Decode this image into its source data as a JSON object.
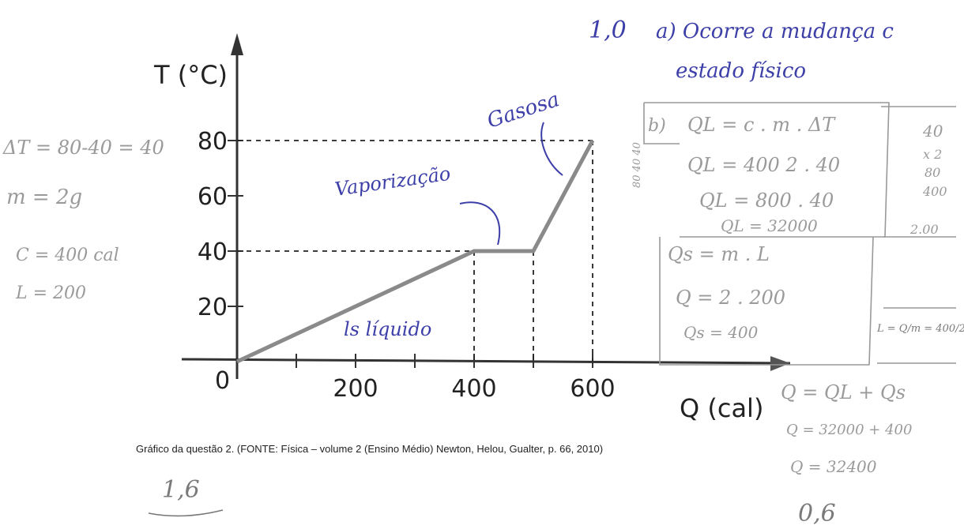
{
  "chart_data": {
    "type": "line",
    "xlabel": "Q (cal)",
    "ylabel": "T (°C)",
    "xlim": [
      0,
      600
    ],
    "ylim": [
      0,
      80
    ],
    "x_ticks": [
      "200",
      "400",
      "600"
    ],
    "y_ticks": [
      "20",
      "40",
      "60",
      "80"
    ],
    "origin_label": "0",
    "series": [
      {
        "x": [
          0,
          400,
          500,
          600
        ],
        "y": [
          0,
          40,
          40,
          80
        ]
      }
    ],
    "grid": false,
    "guides": "dashed lines from the 400, 500 and 600 points to the axes"
  },
  "caption": "Gráfico da questão 2. (FONTE: Física – volume 2 (Ensino Médio) Newton, Helou, Gualter, p. 66, 2010)",
  "handwriting": {
    "blue": {
      "answer_a_score": "1,0",
      "answer_a_line1": "a) Ocorre a mudança c",
      "answer_a_line2": "estado físico",
      "gasosa": "Gasosa",
      "vaporizacao": "Vaporização",
      "liquido": "ls líquido"
    },
    "pencil": {
      "delta_t": "ΔT = 80-40 = 40",
      "mass": "m = 2g",
      "c_value": "C = 400 cal",
      "l_value": "L = 200",
      "b_label": "b)",
      "ql_formula": "QL = c . m . ΔT",
      "ql_line2": "QL = 400 2 . 40",
      "ql_line3": "QL = 800 . 40",
      "ql_result": "QL = 32000",
      "qs_formula": "Qs = m . L",
      "qs_line2": "Q = 2 . 200",
      "qs_result": "Qs = 400",
      "qt_formula": "Q = QL + Qs",
      "qt_line2": "Q = 32000 + 400",
      "qt_result": "Q = 32400",
      "side_sub": "80 40 40",
      "right_col1": "40",
      "right_col2": "x 2",
      "right_col3": "80",
      "right_col4": "400",
      "right_col5": "2.00",
      "l_eq": "L = Q/m = 400/2",
      "score_b": "0,6",
      "score_total": "1,6"
    }
  }
}
